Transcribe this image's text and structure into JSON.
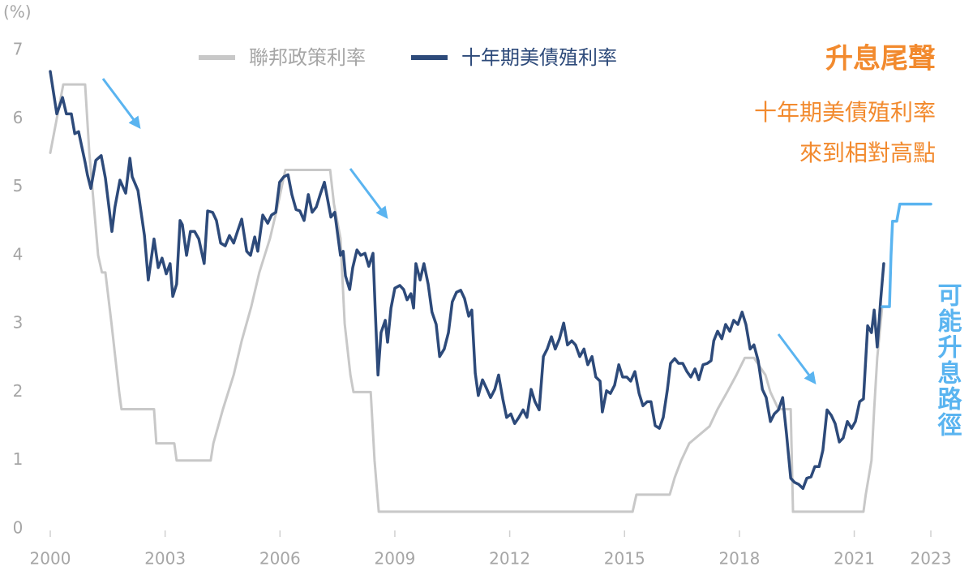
{
  "chart_data": {
    "type": "line",
    "unit_label": "(%)",
    "xlim": [
      2000,
      2023
    ],
    "xticks": [
      2000,
      2003,
      2006,
      2009,
      2012,
      2015,
      2018,
      2021,
      2023
    ],
    "ylim": [
      0,
      7
    ],
    "yticks": [
      0,
      1,
      2,
      3,
      4,
      5,
      6,
      7
    ],
    "grid": false,
    "legend": "top",
    "annotation": {
      "title": "升息尾聲",
      "lines": [
        "十年期美債殖利率",
        "來到相對高點"
      ],
      "color": "#f28a2e"
    },
    "series": [
      {
        "name": "聯邦政策利率",
        "color": "#c8c8c8",
        "legend": true,
        "x": [
          2000,
          2000.34,
          2000.91,
          2001.02,
          2001.25,
          2001.35,
          2001.44,
          2001.6,
          2001.8,
          2001.86,
          2002.71,
          2002.77,
          2003.24,
          2003.3,
          2004.19,
          2004.26,
          2004.51,
          2004.79,
          2005.0,
          2005.25,
          2005.46,
          2005.74,
          2005.95,
          2006.14,
          2007.31,
          2007.41,
          2007.58,
          2007.69,
          2007.84,
          2007.92,
          2008.37,
          2008.47,
          2008.58,
          2015.21,
          2015.31,
          2016.18,
          2016.31,
          2016.48,
          2016.69,
          2017.22,
          2017.43,
          2017.68,
          2017.92,
          2018.14,
          2018.38,
          2018.68,
          2018.81,
          2019.02,
          2019.34,
          2019.4,
          2021.24,
          2021.3,
          2021.45,
          2021.52,
          2021.6,
          2021.73
        ],
        "values": [
          5.5,
          6.5,
          6.5,
          5.5,
          4.0,
          3.75,
          3.75,
          3.0,
          2.0,
          1.75,
          1.75,
          1.25,
          1.25,
          1.0,
          1.0,
          1.25,
          1.75,
          2.25,
          2.75,
          3.25,
          3.75,
          4.25,
          4.75,
          5.25,
          5.25,
          4.75,
          4.25,
          3.0,
          2.25,
          2.0,
          2.0,
          1.0,
          0.25,
          0.25,
          0.5,
          0.5,
          0.75,
          1.0,
          1.25,
          1.5,
          1.75,
          2.0,
          2.25,
          2.5,
          2.5,
          2.25,
          2.0,
          1.75,
          1.75,
          0.25,
          0.25,
          0.5,
          1.0,
          1.75,
          2.5,
          3.25
        ]
      },
      {
        "name": "十年期美債殖利率",
        "color": "#2d4a7a",
        "legend": true,
        "x": [
          2000.0,
          2000.17,
          2000.32,
          2000.42,
          2000.55,
          2000.64,
          2000.74,
          2000.91,
          2000.97,
          2001.06,
          2001.19,
          2001.33,
          2001.44,
          2001.61,
          2001.69,
          2001.82,
          2001.97,
          2002.08,
          2002.14,
          2002.29,
          2002.46,
          2002.56,
          2002.71,
          2002.82,
          2002.92,
          2003.03,
          2003.13,
          2003.2,
          2003.3,
          2003.39,
          2003.45,
          2003.56,
          2003.66,
          2003.77,
          2003.88,
          2004.02,
          2004.11,
          2004.24,
          2004.34,
          2004.45,
          2004.57,
          2004.68,
          2004.79,
          2004.89,
          2005.0,
          2005.13,
          2005.23,
          2005.34,
          2005.42,
          2005.55,
          2005.68,
          2005.78,
          2005.89,
          2005.99,
          2006.1,
          2006.21,
          2006.31,
          2006.42,
          2006.52,
          2006.63,
          2006.74,
          2006.84,
          2006.95,
          2007.05,
          2007.16,
          2007.22,
          2007.33,
          2007.43,
          2007.58,
          2007.65,
          2007.71,
          2007.82,
          2007.9,
          2008.01,
          2008.11,
          2008.22,
          2008.32,
          2008.43,
          2008.49,
          2008.56,
          2008.64,
          2008.75,
          2008.81,
          2008.9,
          2009.0,
          2009.13,
          2009.23,
          2009.32,
          2009.42,
          2009.49,
          2009.55,
          2009.66,
          2009.76,
          2009.87,
          2009.97,
          2010.08,
          2010.17,
          2010.29,
          2010.4,
          2010.5,
          2010.61,
          2010.72,
          2010.82,
          2010.93,
          2011.01,
          2011.1,
          2011.18,
          2011.29,
          2011.39,
          2011.5,
          2011.61,
          2011.71,
          2011.82,
          2011.92,
          2012.03,
          2012.13,
          2012.24,
          2012.35,
          2012.45,
          2012.56,
          2012.66,
          2012.77,
          2012.88,
          2012.98,
          2013.09,
          2013.19,
          2013.3,
          2013.41,
          2013.51,
          2013.62,
          2013.72,
          2013.83,
          2013.94,
          2014.04,
          2014.15,
          2014.25,
          2014.36,
          2014.42,
          2014.53,
          2014.63,
          2014.74,
          2014.85,
          2014.95,
          2015.06,
          2015.16,
          2015.27,
          2015.38,
          2015.48,
          2015.59,
          2015.69,
          2015.8,
          2015.91,
          2016.01,
          2016.12,
          2016.2,
          2016.31,
          2016.41,
          2016.52,
          2016.63,
          2016.73,
          2016.84,
          2016.94,
          2017.05,
          2017.16,
          2017.26,
          2017.33,
          2017.43,
          2017.54,
          2017.64,
          2017.75,
          2017.85,
          2017.96,
          2018.07,
          2018.17,
          2018.28,
          2018.38,
          2018.49,
          2018.6,
          2018.7,
          2018.81,
          2018.91,
          2019.02,
          2019.13,
          2019.23,
          2019.34,
          2019.44,
          2019.55,
          2019.66,
          2019.76,
          2019.87,
          2019.97,
          2020.08,
          2020.18,
          2020.29,
          2020.4,
          2020.5,
          2020.61,
          2020.71,
          2020.82,
          2020.93,
          2021.03,
          2021.14,
          2021.24,
          2021.35,
          2021.45,
          2021.52,
          2021.6,
          2021.69,
          2021.77
        ],
        "values": [
          6.69,
          6.07,
          6.31,
          6.07,
          6.07,
          5.78,
          5.81,
          5.36,
          5.18,
          4.98,
          5.39,
          5.46,
          5.13,
          4.35,
          4.71,
          5.1,
          4.91,
          5.42,
          5.15,
          4.95,
          4.29,
          3.64,
          4.24,
          3.82,
          3.96,
          3.73,
          3.88,
          3.4,
          3.58,
          4.51,
          4.45,
          4.0,
          4.35,
          4.35,
          4.24,
          3.88,
          4.65,
          4.63,
          4.51,
          4.18,
          4.14,
          4.29,
          4.18,
          4.35,
          4.53,
          4.06,
          4.0,
          4.27,
          4.06,
          4.59,
          4.47,
          4.59,
          4.63,
          5.07,
          5.15,
          5.18,
          4.89,
          4.67,
          4.65,
          4.51,
          4.89,
          4.63,
          4.71,
          4.89,
          5.07,
          4.89,
          4.56,
          4.63,
          4.0,
          4.06,
          3.7,
          3.5,
          3.82,
          4.08,
          4.0,
          4.03,
          3.84,
          4.03,
          3.17,
          2.25,
          2.87,
          3.05,
          2.73,
          3.23,
          3.52,
          3.56,
          3.5,
          3.35,
          3.44,
          3.23,
          3.88,
          3.64,
          3.88,
          3.58,
          3.17,
          2.99,
          2.52,
          2.63,
          2.87,
          3.32,
          3.46,
          3.49,
          3.37,
          3.11,
          3.2,
          2.28,
          1.95,
          2.18,
          2.06,
          1.92,
          2.04,
          2.25,
          1.9,
          1.63,
          1.68,
          1.54,
          1.63,
          1.74,
          1.63,
          2.04,
          1.86,
          1.74,
          2.52,
          2.63,
          2.81,
          2.63,
          2.78,
          3.01,
          2.69,
          2.75,
          2.69,
          2.52,
          2.63,
          2.4,
          2.52,
          2.22,
          2.16,
          1.71,
          2.02,
          1.98,
          2.1,
          2.4,
          2.22,
          2.22,
          2.16,
          2.3,
          1.98,
          1.8,
          1.86,
          1.86,
          1.51,
          1.47,
          1.63,
          2.04,
          2.42,
          2.49,
          2.42,
          2.42,
          2.3,
          2.22,
          2.34,
          2.18,
          2.4,
          2.42,
          2.46,
          2.75,
          2.89,
          2.78,
          2.99,
          2.89,
          3.05,
          2.99,
          3.17,
          2.99,
          2.63,
          2.69,
          2.46,
          2.04,
          1.92,
          1.57,
          1.68,
          1.74,
          1.92,
          1.39,
          0.74,
          0.68,
          0.65,
          0.59,
          0.74,
          0.76,
          0.91,
          0.91,
          1.15,
          1.74,
          1.66,
          1.54,
          1.27,
          1.33,
          1.57,
          1.47,
          1.57,
          1.86,
          1.9,
          2.97,
          2.87,
          3.2,
          2.66,
          3.35,
          3.88
        ]
      },
      {
        "name": "可能升息路徑",
        "color": "#5ab4f0",
        "legend": false,
        "x": [
          2021.73,
          2021.92,
          2021.96,
          2022.0,
          2022.11,
          2022.19,
          2023
        ],
        "values": [
          3.25,
          3.25,
          4.0,
          4.5,
          4.5,
          4.75,
          4.75
        ]
      }
    ]
  }
}
